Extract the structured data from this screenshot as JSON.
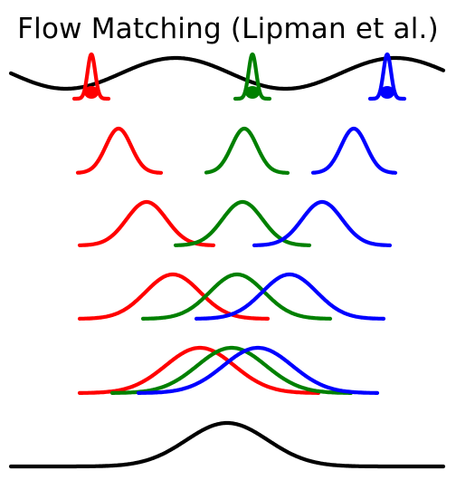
{
  "title": "Flow Matching (Lipman et al.)",
  "colors": {
    "background": "#ffffff",
    "base": "#000000",
    "red": "#ff0000",
    "green": "#008000",
    "blue": "#0000ff"
  },
  "rows": [
    {
      "name": "data-distribution",
      "curves": [
        {
          "color": "base",
          "kind": "mixture"
        },
        {
          "color": "red",
          "kind": "spike"
        },
        {
          "color": "green",
          "kind": "spike"
        },
        {
          "color": "blue",
          "kind": "spike"
        }
      ]
    },
    {
      "name": "step-1",
      "curves": [
        {
          "color": "red"
        },
        {
          "color": "green"
        },
        {
          "color": "blue"
        }
      ]
    },
    {
      "name": "step-2",
      "curves": [
        {
          "color": "red"
        },
        {
          "color": "green"
        },
        {
          "color": "blue"
        }
      ]
    },
    {
      "name": "step-3",
      "curves": [
        {
          "color": "red"
        },
        {
          "color": "green"
        },
        {
          "color": "blue"
        }
      ]
    },
    {
      "name": "step-4",
      "curves": [
        {
          "color": "red"
        },
        {
          "color": "green"
        },
        {
          "color": "blue"
        }
      ]
    },
    {
      "name": "noise-distribution",
      "curves": [
        {
          "color": "base",
          "kind": "gaussian"
        }
      ]
    }
  ]
}
